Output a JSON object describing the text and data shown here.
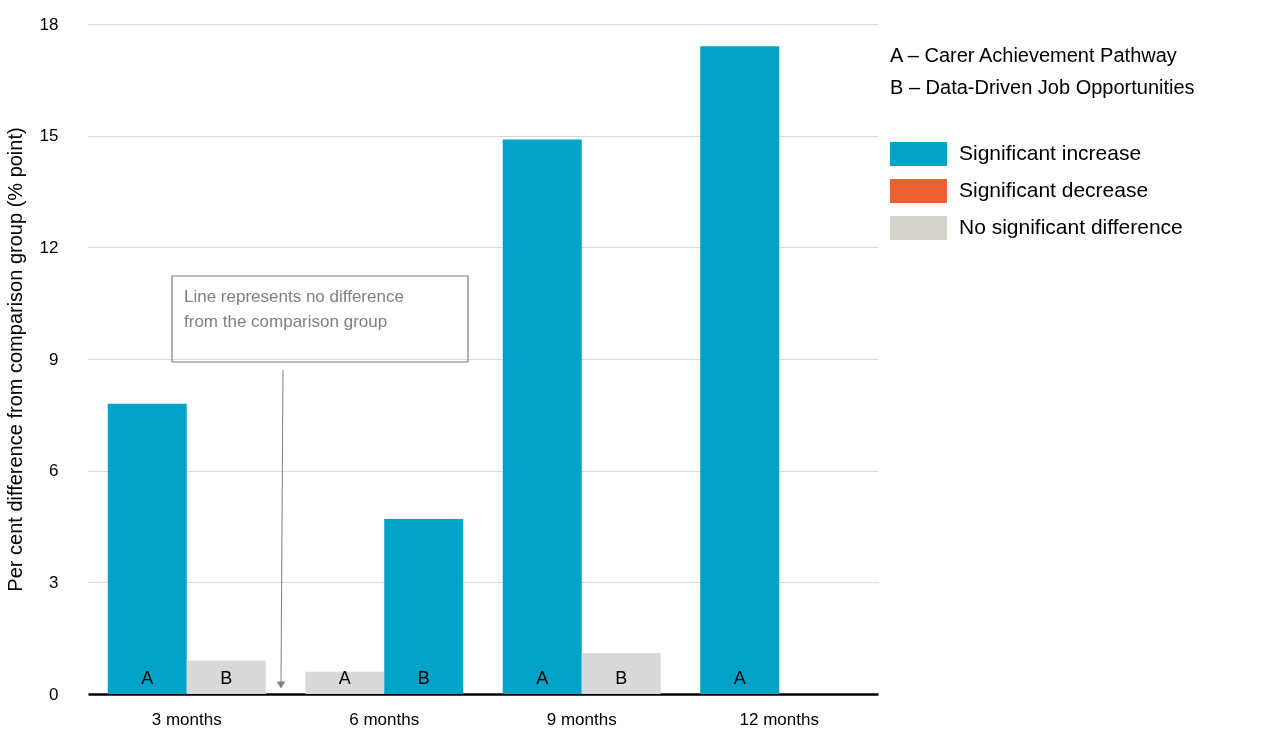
{
  "chart_data": {
    "type": "bar",
    "ylabel": "Per cent difference from comparison group (% point)",
    "categories": [
      "3 months",
      "6 months",
      "9 months",
      "12 months"
    ],
    "series": [
      {
        "name": "A",
        "values": [
          7.8,
          0.6,
          14.9,
          17.4
        ],
        "colors": [
          "#00a2c7",
          "#d9d9d9",
          "#00a2c7",
          "#00a2c7"
        ]
      },
      {
        "name": "B",
        "values": [
          0.9,
          4.7,
          1.1,
          null
        ],
        "colors": [
          "#d9d9d9",
          "#00a2c7",
          "#d9d9d9",
          null
        ]
      },
      {
        "name": "Significant increase",
        "color": "#00a2c7",
        "values": [
          null,
          null,
          null,
          null
        ]
      },
      {
        "name": "Significant decrease",
        "color": "#ec6130",
        "values": [
          null,
          null,
          null,
          null
        ]
      },
      {
        "name": "No significant difference",
        "color": "#d6d2cc",
        "values": [
          null,
          null,
          null,
          null
        ]
      }
    ],
    "ylim": [
      0,
      18
    ],
    "yticks": [
      0,
      3,
      6,
      9,
      12,
      15,
      18
    ],
    "grid": "y",
    "legend": "right",
    "annotations": [
      "A – Carer Achievement Pathway",
      "B – Data-Driven Job Opportunities",
      "Line represents no difference from the comparison group"
    ]
  }
}
